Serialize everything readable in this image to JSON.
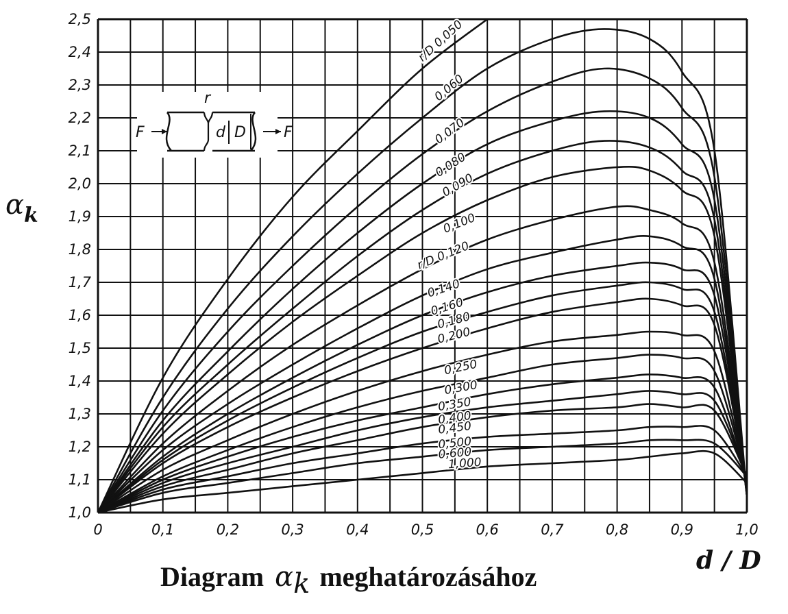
{
  "chart_data": {
    "type": "line",
    "ylabel_symbol": "α",
    "ylabel_sub": "k",
    "xlabel": "d / D",
    "caption_prefix": "Diagram",
    "caption_symbol": "α",
    "caption_sub": "k",
    "caption_suffix": "meghatározásához",
    "xlim": [
      0,
      1.0
    ],
    "ylim": [
      1.0,
      2.5
    ],
    "grid": true,
    "x_ticks": [
      {
        "v": 0,
        "label": "0"
      },
      {
        "v": 0.1,
        "label": "0,1"
      },
      {
        "v": 0.2,
        "label": "0,2"
      },
      {
        "v": 0.3,
        "label": "0,3"
      },
      {
        "v": 0.4,
        "label": "0,4"
      },
      {
        "v": 0.5,
        "label": "0,5"
      },
      {
        "v": 0.6,
        "label": "0,6"
      },
      {
        "v": 0.7,
        "label": "0,7"
      },
      {
        "v": 0.8,
        "label": "0,8"
      },
      {
        "v": 0.9,
        "label": "0,9"
      },
      {
        "v": 1.0,
        "label": "1,0"
      }
    ],
    "y_ticks": [
      {
        "v": 1.0,
        "label": "1,0"
      },
      {
        "v": 1.1,
        "label": "1,1"
      },
      {
        "v": 1.2,
        "label": "1,2"
      },
      {
        "v": 1.3,
        "label": "1,3"
      },
      {
        "v": 1.4,
        "label": "1,4"
      },
      {
        "v": 1.5,
        "label": "1,5"
      },
      {
        "v": 1.6,
        "label": "1,6"
      },
      {
        "v": 1.7,
        "label": "1,7"
      },
      {
        "v": 1.8,
        "label": "1,8"
      },
      {
        "v": 1.9,
        "label": "1,9"
      },
      {
        "v": 2.0,
        "label": "2,0"
      },
      {
        "v": 2.1,
        "label": "2,1"
      },
      {
        "v": 2.2,
        "label": "2,2"
      },
      {
        "v": 2.3,
        "label": "2,3"
      },
      {
        "v": 2.4,
        "label": "2,4"
      },
      {
        "v": 2.5,
        "label": "2,5"
      }
    ],
    "inset": {
      "label_r": "r",
      "label_d": "d",
      "label_D": "D",
      "label_F_left": "F",
      "label_F_right": "F"
    },
    "series": [
      {
        "label": "r/D 0,050",
        "x": [
          0,
          0.1,
          0.2,
          0.3,
          0.4,
          0.5,
          0.6
        ],
        "y": [
          1.0,
          1.41,
          1.71,
          1.96,
          2.16,
          2.35,
          2.5
        ]
      },
      {
        "label": "0,060",
        "x": [
          0,
          0.1,
          0.2,
          0.3,
          0.4,
          0.5,
          0.6,
          0.7,
          0.78,
          0.85,
          0.9,
          0.95,
          1.0
        ],
        "y": [
          1.0,
          1.35,
          1.62,
          1.84,
          2.03,
          2.2,
          2.35,
          2.44,
          2.47,
          2.44,
          2.34,
          2.1,
          1.05
        ]
      },
      {
        "label": "0,070",
        "x": [
          0,
          0.1,
          0.2,
          0.3,
          0.4,
          0.5,
          0.6,
          0.7,
          0.78,
          0.85,
          0.9,
          0.95,
          1.0
        ],
        "y": [
          1.0,
          1.31,
          1.55,
          1.75,
          1.93,
          2.09,
          2.22,
          2.31,
          2.35,
          2.32,
          2.23,
          2.02,
          1.05
        ]
      },
      {
        "label": "0,080",
        "x": [
          0,
          0.1,
          0.2,
          0.3,
          0.4,
          0.5,
          0.6,
          0.7,
          0.78,
          0.85,
          0.9,
          0.95,
          1.0
        ],
        "y": [
          1.0,
          1.28,
          1.49,
          1.68,
          1.85,
          2.0,
          2.12,
          2.19,
          2.22,
          2.2,
          2.12,
          1.95,
          1.05
        ]
      },
      {
        "label": "0,090",
        "x": [
          0,
          0.1,
          0.2,
          0.3,
          0.4,
          0.5,
          0.6,
          0.7,
          0.78,
          0.85,
          0.9,
          0.95,
          1.0
        ],
        "y": [
          1.0,
          1.26,
          1.45,
          1.62,
          1.78,
          1.92,
          2.03,
          2.1,
          2.13,
          2.11,
          2.04,
          1.89,
          1.05
        ]
      },
      {
        "label": "0,100",
        "x": [
          0,
          0.1,
          0.2,
          0.3,
          0.4,
          0.5,
          0.6,
          0.7,
          0.8,
          0.85,
          0.9,
          0.95,
          1.0
        ],
        "y": [
          1.0,
          1.24,
          1.42,
          1.58,
          1.72,
          1.85,
          1.95,
          2.02,
          2.05,
          2.04,
          1.98,
          1.84,
          1.05
        ]
      },
      {
        "label": "r/D 0,120",
        "x": [
          0,
          0.1,
          0.2,
          0.3,
          0.4,
          0.5,
          0.6,
          0.7,
          0.8,
          0.85,
          0.9,
          0.95,
          1.0
        ],
        "y": [
          1.0,
          1.21,
          1.37,
          1.51,
          1.63,
          1.74,
          1.83,
          1.89,
          1.93,
          1.92,
          1.88,
          1.76,
          1.06
        ]
      },
      {
        "label": "0,140",
        "x": [
          0,
          0.1,
          0.2,
          0.3,
          0.4,
          0.5,
          0.6,
          0.7,
          0.8,
          0.85,
          0.9,
          0.95,
          1.0
        ],
        "y": [
          1.0,
          1.19,
          1.33,
          1.45,
          1.56,
          1.66,
          1.74,
          1.79,
          1.83,
          1.84,
          1.81,
          1.71,
          1.06
        ]
      },
      {
        "label": "0,160",
        "x": [
          0,
          0.1,
          0.2,
          0.3,
          0.4,
          0.5,
          0.6,
          0.7,
          0.8,
          0.85,
          0.9,
          0.95,
          1.0
        ],
        "y": [
          1.0,
          1.17,
          1.3,
          1.41,
          1.51,
          1.6,
          1.67,
          1.72,
          1.75,
          1.76,
          1.74,
          1.66,
          1.07
        ]
      },
      {
        "label": "0,180",
        "x": [
          0,
          0.1,
          0.2,
          0.3,
          0.4,
          0.5,
          0.6,
          0.7,
          0.8,
          0.85,
          0.9,
          0.95,
          1.0
        ],
        "y": [
          1.0,
          1.16,
          1.28,
          1.38,
          1.47,
          1.55,
          1.61,
          1.66,
          1.69,
          1.7,
          1.68,
          1.61,
          1.07
        ]
      },
      {
        "label": "0,200",
        "x": [
          0,
          0.1,
          0.2,
          0.3,
          0.4,
          0.5,
          0.6,
          0.7,
          0.8,
          0.85,
          0.9,
          0.95,
          1.0
        ],
        "y": [
          1.0,
          1.15,
          1.26,
          1.35,
          1.43,
          1.5,
          1.56,
          1.61,
          1.64,
          1.65,
          1.63,
          1.57,
          1.08
        ]
      },
      {
        "label": "0,250",
        "x": [
          0,
          0.1,
          0.2,
          0.3,
          0.4,
          0.5,
          0.6,
          0.7,
          0.8,
          0.85,
          0.9,
          0.95,
          1.0
        ],
        "y": [
          1.0,
          1.13,
          1.22,
          1.3,
          1.37,
          1.43,
          1.48,
          1.52,
          1.54,
          1.55,
          1.54,
          1.49,
          1.09
        ]
      },
      {
        "label": "0,300",
        "x": [
          0,
          0.1,
          0.2,
          0.3,
          0.4,
          0.5,
          0.6,
          0.7,
          0.8,
          0.85,
          0.9,
          0.95,
          1.0
        ],
        "y": [
          1.0,
          1.11,
          1.19,
          1.26,
          1.32,
          1.37,
          1.41,
          1.45,
          1.47,
          1.48,
          1.47,
          1.43,
          1.1
        ]
      },
      {
        "label": "0,350",
        "x": [
          0,
          0.1,
          0.2,
          0.3,
          0.4,
          0.5,
          0.6,
          0.7,
          0.8,
          0.85,
          0.9,
          0.95,
          1.0
        ],
        "y": [
          1.0,
          1.1,
          1.17,
          1.23,
          1.28,
          1.32,
          1.36,
          1.39,
          1.41,
          1.42,
          1.41,
          1.38,
          1.1
        ]
      },
      {
        "label": "0,400",
        "x": [
          0,
          0.1,
          0.2,
          0.3,
          0.4,
          0.5,
          0.6,
          0.7,
          0.8,
          0.85,
          0.9,
          0.95,
          1.0
        ],
        "y": [
          1.0,
          1.09,
          1.15,
          1.2,
          1.25,
          1.29,
          1.32,
          1.34,
          1.36,
          1.37,
          1.36,
          1.34,
          1.11
        ]
      },
      {
        "label": "0,450",
        "x": [
          0,
          0.1,
          0.2,
          0.3,
          0.4,
          0.5,
          0.6,
          0.7,
          0.8,
          0.85,
          0.9,
          0.95,
          1.0
        ],
        "y": [
          1.0,
          1.08,
          1.13,
          1.18,
          1.22,
          1.26,
          1.29,
          1.31,
          1.32,
          1.33,
          1.32,
          1.31,
          1.11
        ]
      },
      {
        "label": "0,500",
        "x": [
          0,
          0.1,
          0.2,
          0.3,
          0.4,
          0.5,
          0.6,
          0.7,
          0.8,
          0.85,
          0.9,
          0.95,
          1.0
        ],
        "y": [
          1.0,
          1.07,
          1.11,
          1.15,
          1.18,
          1.21,
          1.23,
          1.24,
          1.25,
          1.26,
          1.26,
          1.25,
          1.11
        ]
      },
      {
        "label": "0,600",
        "x": [
          0,
          0.1,
          0.2,
          0.3,
          0.4,
          0.5,
          0.6,
          0.7,
          0.8,
          0.85,
          0.9,
          0.95,
          1.0
        ],
        "y": [
          1.0,
          1.06,
          1.09,
          1.12,
          1.15,
          1.17,
          1.19,
          1.2,
          1.21,
          1.22,
          1.22,
          1.21,
          1.11
        ]
      },
      {
        "label": "1,000",
        "x": [
          0,
          0.1,
          0.2,
          0.3,
          0.4,
          0.5,
          0.6,
          0.7,
          0.8,
          0.85,
          0.9,
          0.95,
          1.0
        ],
        "y": [
          1.0,
          1.04,
          1.06,
          1.08,
          1.1,
          1.12,
          1.14,
          1.15,
          1.16,
          1.17,
          1.18,
          1.18,
          1.09
        ]
      }
    ],
    "curve_labels": [
      {
        "text": "r/D 0,050",
        "x": 0.5,
        "y": 2.37,
        "rot": -42
      },
      {
        "text": "0,060",
        "x": 0.525,
        "y": 2.25,
        "rot": -40
      },
      {
        "text": "0,070",
        "x": 0.525,
        "y": 2.12,
        "rot": -37
      },
      {
        "text": "0,080",
        "x": 0.525,
        "y": 2.02,
        "rot": -33
      },
      {
        "text": "0,090",
        "x": 0.535,
        "y": 1.96,
        "rot": -30
      },
      {
        "text": "0,100",
        "x": 0.535,
        "y": 1.85,
        "rot": -22
      },
      {
        "text": "r/D 0,120",
        "x": 0.495,
        "y": 1.74,
        "rot": -22
      },
      {
        "text": "0,140",
        "x": 0.51,
        "y": 1.655,
        "rot": -18
      },
      {
        "text": "0,160",
        "x": 0.515,
        "y": 1.6,
        "rot": -17
      },
      {
        "text": "0,180",
        "x": 0.525,
        "y": 1.56,
        "rot": -15
      },
      {
        "text": "0,200",
        "x": 0.525,
        "y": 1.515,
        "rot": -14
      },
      {
        "text": "0,250",
        "x": 0.535,
        "y": 1.42,
        "rot": -12
      },
      {
        "text": "0,300",
        "x": 0.535,
        "y": 1.36,
        "rot": -10
      },
      {
        "text": "0,350",
        "x": 0.525,
        "y": 1.31,
        "rot": -9
      },
      {
        "text": "0,400",
        "x": 0.525,
        "y": 1.27,
        "rot": -8
      },
      {
        "text": "0,450",
        "x": 0.525,
        "y": 1.24,
        "rot": -7
      },
      {
        "text": "0,500",
        "x": 0.525,
        "y": 1.195,
        "rot": -6
      },
      {
        "text": "0,600",
        "x": 0.525,
        "y": 1.165,
        "rot": -5
      },
      {
        "text": "1,000",
        "x": 0.54,
        "y": 1.135,
        "rot": -4
      }
    ]
  }
}
